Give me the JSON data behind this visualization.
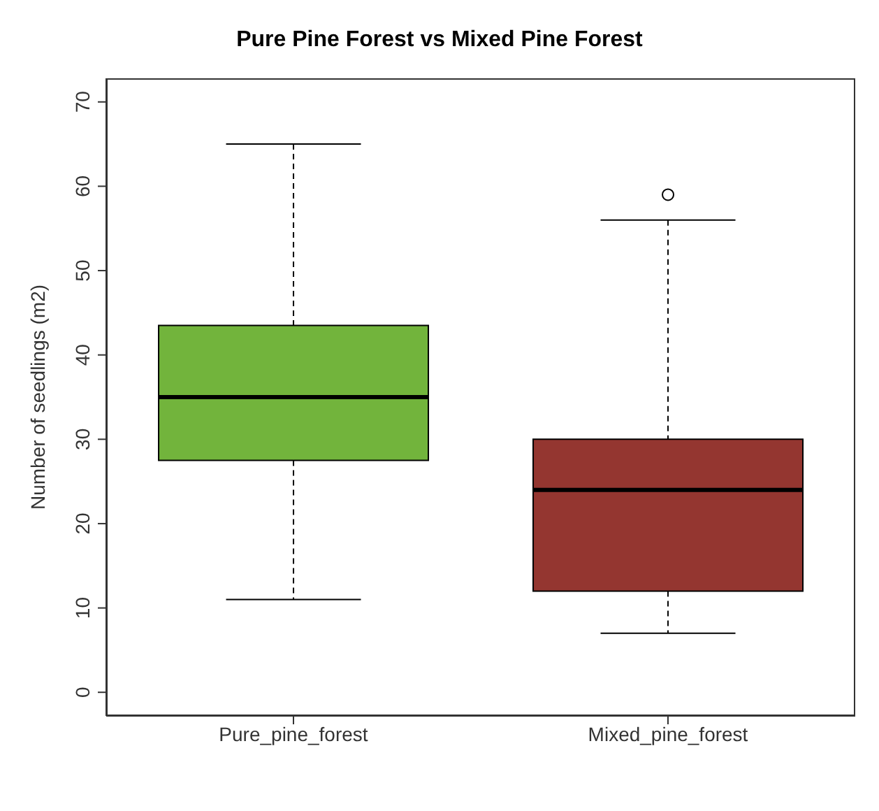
{
  "chart_data": {
    "type": "box",
    "title": "Pure Pine Forest vs Mixed Pine Forest",
    "ylabel": "Number of seedlings (m2)",
    "categories": [
      "Pure_pine_forest",
      "Mixed_pine_forest"
    ],
    "boxes": [
      {
        "low": 11,
        "q1": 27.5,
        "median": 35,
        "q3": 43.5,
        "high": 65
      },
      {
        "low": 7,
        "q1": 12,
        "median": 24,
        "q3": 30,
        "high": 56,
        "outliers": [
          59
        ]
      }
    ],
    "colors": [
      "#72b43c",
      "#943630"
    ],
    "ylim": [
      -2.8,
      72.8
    ],
    "yticks": [
      0,
      10,
      20,
      30,
      40,
      50,
      60,
      70
    ],
    "grid": false,
    "legend": false
  }
}
